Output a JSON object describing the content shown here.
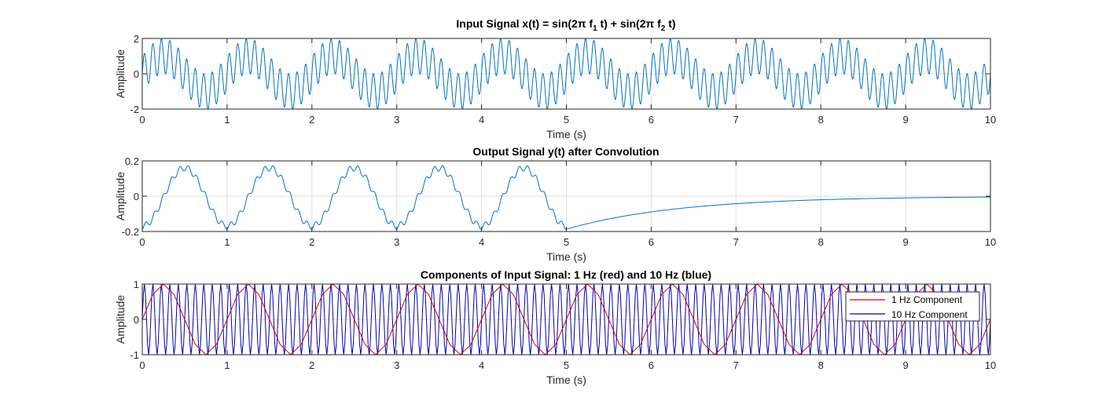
{
  "colors": {
    "signal": "#0072BD",
    "red_component": "#D40000",
    "blue_component": "#0000B4",
    "axes": "#262626",
    "grid": "#DFDFDF"
  },
  "chart_data": [
    {
      "type": "line",
      "title_parts": {
        "pre": "Input Signal x(t) = sin(2π f",
        "sub1": "1",
        "mid": " t) + sin(2π f",
        "sub2": "2",
        "post": " t)"
      },
      "xlabel": "Time (s)",
      "ylabel": "Amplitude",
      "xlim": [
        0,
        10
      ],
      "ylim": [
        -2,
        2
      ],
      "xticks": [
        "0",
        "1",
        "2",
        "3",
        "4",
        "5",
        "6",
        "7",
        "8",
        "9",
        "10"
      ],
      "yticks": [
        "-2",
        "0",
        "2"
      ],
      "grid": true,
      "series": [
        {
          "expr": "sin(2*pi*1*t) + sin(2*pi*10*t)",
          "t_range": [
            0,
            10
          ],
          "f1": 1,
          "f2": 10,
          "samples": 4000
        }
      ]
    },
    {
      "type": "line",
      "title": "Output Signal y(t) after Convolution",
      "xlabel": "Time (s)",
      "ylabel": "Amplitude",
      "xlim": [
        0,
        10
      ],
      "ylim": [
        -0.2,
        0.2
      ],
      "xticks": [
        "0",
        "1",
        "2",
        "3",
        "4",
        "5",
        "6",
        "7",
        "8",
        "9",
        "10"
      ],
      "yticks": [
        "-0.2",
        "0",
        "0.2"
      ],
      "grid": true,
      "series": [
        {
          "expr": "convolution of x(t) with exponential decay; decays toward 0 after t=5",
          "t_range": [
            0,
            10
          ],
          "peak": 0.165,
          "samples": 3000
        }
      ]
    },
    {
      "type": "line",
      "title": "Components of Input Signal: 1 Hz (red) and 10 Hz (blue)",
      "xlabel": "Time (s)",
      "ylabel": "Amplitude",
      "xlim": [
        0,
        10
      ],
      "ylim": [
        -1,
        1
      ],
      "xticks": [
        "0",
        "1",
        "2",
        "3",
        "4",
        "5",
        "6",
        "7",
        "8",
        "9",
        "10"
      ],
      "yticks": [
        "-1",
        "0",
        "1"
      ],
      "grid": true,
      "legend_position": "top-right",
      "series": [
        {
          "name": "1 Hz Component",
          "freq": 1,
          "color": "#D40000"
        },
        {
          "name": "10 Hz Component",
          "freq": 10,
          "color": "#0000B4"
        }
      ]
    }
  ]
}
